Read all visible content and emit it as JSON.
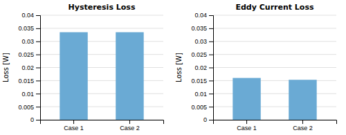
{
  "chart_data": [
    {
      "type": "bar",
      "title": "Hysteresis Loss",
      "ylabel": "Loss [W]",
      "categories": [
        "Case 1",
        "Case 2"
      ],
      "values": [
        0.0335,
        0.0335
      ],
      "color": "#6aaad4",
      "ylim": [
        0,
        0.04
      ],
      "yticks": [
        0,
        0.005,
        0.01,
        0.015,
        0.02,
        0.025,
        0.03,
        0.035,
        0.04
      ],
      "grid": true
    },
    {
      "type": "bar",
      "title": "Eddy Current Loss",
      "ylabel": "Loss [W]",
      "categories": [
        "Case 1",
        "Case 2"
      ],
      "values": [
        0.016,
        0.0153
      ],
      "color": "#6aaad4",
      "ylim": [
        0,
        0.04
      ],
      "yticks": [
        0,
        0.005,
        0.01,
        0.015,
        0.02,
        0.025,
        0.03,
        0.035,
        0.04
      ],
      "grid": true
    }
  ]
}
